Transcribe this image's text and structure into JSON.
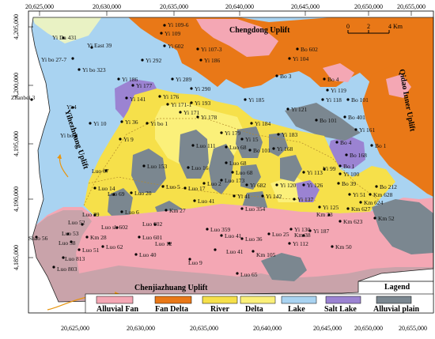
{
  "axes": {
    "x_ticks_top": [
      "20,625,000",
      "20,630,000",
      "20,635,000",
      "20,640,000",
      "20,645,000",
      "20,650,000",
      "20,655,000"
    ],
    "x_ticks_bottom": [
      "20,625,000",
      "20,630,000",
      "20,635,000",
      "20,640,000",
      "20,645,000",
      "20,650,000",
      "20,655,000"
    ],
    "y_ticks": [
      "4,205,000",
      "4,200,000",
      "4,195,000",
      "4,190,000",
      "4,185,000"
    ]
  },
  "scale_bar": {
    "labels": [
      "0",
      "2",
      "4 Km"
    ]
  },
  "features": {
    "chengdong": "Chengdong Uplift",
    "qidao": "Qidao Inner Uplift",
    "yihezhuang": "Yihezhuang Uplift",
    "chenjiazhuang": "Chenjiazhuang Uplift"
  },
  "legend": {
    "title": "Lagend",
    "items": [
      {
        "label": "Alluvial Fan",
        "color": "#f4a7b4"
      },
      {
        "label": "Fan Delta",
        "color": "#e97817"
      },
      {
        "label": "River",
        "color": "#f6e04a"
      },
      {
        "label": "Delta",
        "color": "#fbf07a"
      },
      {
        "label": "Lake",
        "color": "#a9d3f1"
      },
      {
        "label": "Salt Lake",
        "color": "#9b83d2"
      },
      {
        "label": "Alluvial plain",
        "color": "#7b8790"
      }
    ]
  },
  "colors": {
    "alluvial_fan": "#f4a7b4",
    "fan_delta": "#e97817",
    "river": "#f6e04a",
    "delta": "#fbf07a",
    "lake": "#a9d3f1",
    "salt_lake": "#9b83d2",
    "alluvial_plain": "#7b8790",
    "fan_dark": "#c9a3aa",
    "pale_green": "#e9f2c4",
    "uplift_arrow": "#e8950f"
  },
  "wells": [
    "Yi Da 431",
    "Yi East 39",
    "Yi 109-6",
    "Yi 109",
    "Yi 602",
    "Yi 107-3",
    "Bo 602",
    "Yi 104",
    "Bo 3",
    "Yi bo 27-7",
    "Yi 292",
    "Yi bo 323",
    "Yi 186",
    "Yi 289",
    "Yi 186",
    "Yi 290",
    "Bo 4",
    "Yi 119",
    "Yi 118",
    "Bo 101",
    "Zhanbei 3",
    "Yi 177",
    "Yi 141",
    "Yi 176",
    "Yi 185",
    "Yi 121",
    "Bo 101",
    "Bo 401",
    "Yi 4",
    "Yi 171-1",
    "Yi 193",
    "Yi 171",
    "Yi 178",
    "Yi 161",
    "Bo 1",
    "Yi 10",
    "Yi 36",
    "Yi bo 1",
    "Yi bo 3",
    "Yi 184",
    "Yi 179",
    "Yi 183",
    "Bo 4",
    "Bo 168",
    "Yi 9",
    "Yi 15",
    "Luo 111",
    "Luo 68",
    "Bo 101",
    "Yi 168",
    "Bo 1",
    "Luo 67",
    "Luo 153",
    "Luo 16",
    "Luo 68",
    "Luo 68",
    "Yi 113",
    "Yi 99",
    "Yi 100",
    "Luo 14",
    "Luo 20",
    "Luo 5",
    "Luo 17",
    "Luo 2",
    "Luo 173",
    "Yi 682",
    "Yi 120",
    "Yi 126",
    "Bo 39",
    "Bo 212",
    "Luo 69",
    "Luo 41",
    "Yi 41",
    "Yi 142",
    "Yi 137",
    "Yi 51",
    "Km 628",
    "Km 624",
    "Km 627",
    "Km 52",
    "Luo 6",
    "Km 27",
    "Luo 354",
    "Yi 125",
    "Km 623",
    "Km 33",
    "Luo 39",
    "Luo sh 602",
    "Luo 602",
    "Luo 52",
    "Luo 53",
    "Km 28",
    "Luo 359",
    "Luo 601",
    "Luo 58",
    "Luo 41",
    "Luo 36",
    "Luo 25",
    "Yi 130",
    "Km 38",
    "Yi 187",
    "Yi 112",
    "Shao 56",
    "Luo 51",
    "Luo 62",
    "Luo 12",
    "Luo 40",
    "Luo 41",
    "Km 105",
    "Km 50",
    "Luo 813",
    "Luo 803",
    "Luo 9",
    "Luo 65"
  ]
}
